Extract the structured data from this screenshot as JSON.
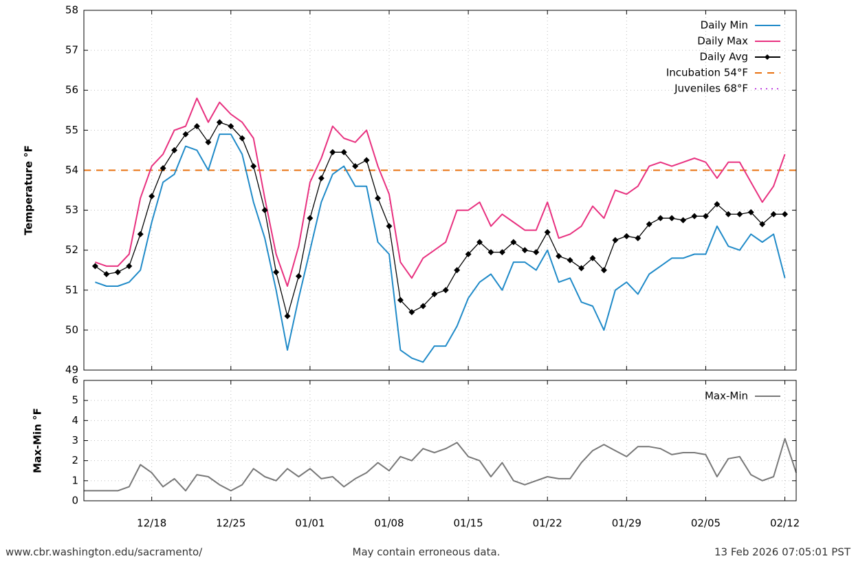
{
  "chart_data": [
    {
      "type": "line",
      "ylabel": "Temperature °F",
      "ylim": [
        49,
        58
      ],
      "yticks": [
        49,
        50,
        51,
        52,
        53,
        54,
        55,
        56,
        57,
        58
      ],
      "grid": true,
      "legend": "upper right",
      "series": [
        {
          "name": "Daily Min",
          "color": "#1f8ac8",
          "values": [
            null,
            51.2,
            51.1,
            51.1,
            51.2,
            51.5,
            52.7,
            53.7,
            53.9,
            54.6,
            54.5,
            54.0,
            54.9,
            54.9,
            54.4,
            53.2,
            52.3,
            51.0,
            49.5,
            50.8,
            52.0,
            53.2,
            53.9,
            54.1,
            53.6,
            53.6,
            52.2,
            51.9,
            49.5,
            49.3,
            49.2,
            49.6,
            49.6,
            50.1,
            50.8,
            51.2,
            51.4,
            51.0,
            51.7,
            51.7,
            51.5,
            52.0,
            51.2,
            51.3,
            50.7,
            50.6,
            50.0,
            51.0,
            51.2,
            50.9,
            51.4,
            51.6,
            51.8,
            51.8,
            51.9,
            51.9,
            52.6,
            52.1,
            52.0,
            52.4,
            52.2,
            52.4,
            51.3,
            null
          ]
        },
        {
          "name": "Daily Max",
          "color": "#e8307f",
          "values": [
            null,
            51.7,
            51.6,
            51.6,
            51.9,
            53.3,
            54.1,
            54.4,
            55.0,
            55.1,
            55.8,
            55.2,
            55.7,
            55.4,
            55.2,
            54.8,
            53.3,
            51.9,
            51.1,
            52.1,
            53.7,
            54.3,
            55.1,
            54.8,
            54.7,
            55.0,
            54.1,
            53.4,
            51.7,
            51.3,
            51.8,
            52.0,
            52.2,
            53.0,
            53.0,
            53.2,
            52.6,
            52.9,
            52.7,
            52.5,
            52.5,
            53.2,
            52.3,
            52.4,
            52.6,
            53.1,
            52.8,
            53.5,
            53.4,
            53.6,
            54.1,
            54.2,
            54.1,
            54.2,
            54.3,
            54.2,
            53.8,
            54.2,
            54.2,
            53.7,
            53.2,
            53.6,
            54.4,
            null
          ]
        },
        {
          "name": "Daily Avg",
          "color": "#000000",
          "marker": "diamond",
          "values": [
            null,
            51.6,
            51.4,
            51.45,
            51.6,
            52.4,
            53.35,
            54.05,
            54.5,
            54.9,
            55.1,
            54.7,
            55.2,
            55.1,
            54.8,
            54.1,
            53.0,
            51.45,
            50.35,
            51.35,
            52.8,
            53.8,
            54.45,
            54.45,
            54.1,
            54.25,
            53.3,
            52.6,
            50.75,
            50.45,
            50.6,
            50.9,
            51.0,
            51.5,
            51.9,
            52.2,
            51.95,
            51.95,
            52.2,
            52.0,
            51.95,
            52.45,
            51.85,
            51.75,
            51.55,
            51.8,
            51.5,
            52.25,
            52.35,
            52.3,
            52.65,
            52.8,
            52.8,
            52.75,
            52.85,
            52.85,
            53.15,
            52.9,
            52.9,
            52.95,
            52.65,
            52.9,
            52.9,
            null
          ]
        }
      ],
      "reference_lines": [
        {
          "name": "Incubation 54°F",
          "value": 54,
          "color": "#e8700f",
          "style": "dashed"
        },
        {
          "name": "Juveniles 68°F",
          "value": 68,
          "color": "#c040e0",
          "style": "dotted"
        }
      ]
    },
    {
      "type": "line",
      "ylabel": "Max-Min °F",
      "ylim": [
        0,
        6
      ],
      "yticks": [
        0,
        1,
        2,
        3,
        4,
        5,
        6
      ],
      "grid": true,
      "legend": "upper right",
      "x": [
        "12/12",
        "12/13",
        "12/14",
        "12/15",
        "12/16",
        "12/17",
        "12/18",
        "12/19",
        "12/20",
        "12/21",
        "12/22",
        "12/23",
        "12/24",
        "12/25",
        "12/26",
        "12/27",
        "12/28",
        "12/29",
        "12/30",
        "12/31",
        "01/01",
        "01/02",
        "01/03",
        "01/04",
        "01/05",
        "01/06",
        "01/07",
        "01/08",
        "01/09",
        "01/10",
        "01/11",
        "01/12",
        "01/13",
        "01/14",
        "01/15",
        "01/16",
        "01/17",
        "01/18",
        "01/19",
        "01/20",
        "01/21",
        "01/22",
        "01/23",
        "01/24",
        "01/25",
        "01/26",
        "01/27",
        "01/28",
        "01/29",
        "01/30",
        "01/31",
        "02/01",
        "02/02",
        "02/03",
        "02/04",
        "02/05",
        "02/06",
        "02/07",
        "02/08",
        "02/09",
        "02/10",
        "02/11",
        "02/12",
        "02/13"
      ],
      "xticks": [
        "12/18",
        "12/25",
        "01/01",
        "01/08",
        "01/15",
        "01/22",
        "01/29",
        "02/05",
        "02/12"
      ],
      "series": [
        {
          "name": "Max-Min",
          "color": "#777777",
          "values": [
            0.5,
            0.5,
            0.5,
            0.5,
            0.7,
            1.8,
            1.4,
            0.7,
            1.1,
            0.5,
            1.3,
            1.2,
            0.8,
            0.5,
            0.8,
            1.6,
            1.2,
            1.0,
            1.6,
            1.2,
            1.6,
            1.1,
            1.2,
            0.7,
            1.1,
            1.4,
            1.9,
            1.5,
            2.2,
            2.0,
            2.6,
            2.4,
            2.6,
            2.9,
            2.2,
            2.0,
            1.2,
            1.9,
            1.0,
            0.8,
            1.0,
            1.2,
            1.1,
            1.1,
            1.9,
            2.5,
            2.8,
            2.5,
            2.2,
            2.7,
            2.7,
            2.6,
            2.3,
            2.4,
            2.4,
            2.3,
            1.2,
            2.1,
            2.2,
            1.3,
            1.0,
            1.2,
            3.1,
            1.4
          ]
        }
      ]
    }
  ],
  "footer": {
    "left": "www.cbr.washington.edu/sacramento/",
    "center": "May contain erroneous data.",
    "right": "13 Feb 2026 07:05:01 PST"
  }
}
